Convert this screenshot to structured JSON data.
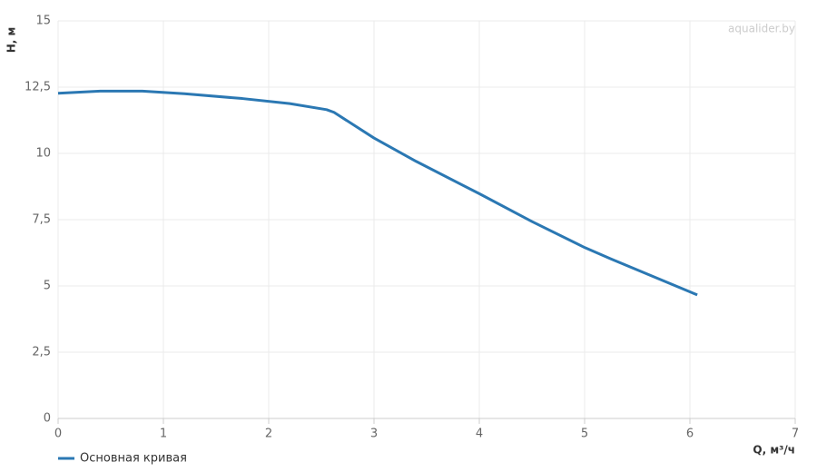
{
  "chart_data": {
    "type": "line",
    "watermark": "aqualider.by",
    "x_label": "Q, м³/ч",
    "y_label": "H, м",
    "series": [
      {
        "name": "Основная кривая",
        "color": "#2b78b3",
        "x": [
          0,
          0.4,
          0.8,
          1.2,
          1.75,
          2.2,
          2.55,
          2.62,
          3.0,
          3.4,
          4.0,
          4.5,
          5.0,
          5.25,
          6.07
        ],
        "values": [
          12.27,
          12.35,
          12.35,
          12.25,
          12.07,
          11.88,
          11.65,
          11.55,
          10.58,
          9.7,
          8.48,
          7.43,
          6.45,
          6.02,
          4.66
        ]
      }
    ],
    "xlim": [
      0,
      7
    ],
    "xticks": [
      0,
      1,
      2,
      3,
      4,
      5,
      6,
      7
    ],
    "ylim": [
      0,
      15
    ],
    "yticks": [
      0,
      {
        "value": 2.5,
        "label": "2,5"
      },
      5,
      {
        "value": 7.5,
        "label": "7,5"
      },
      10,
      {
        "value": 12.5,
        "label": "12,5"
      },
      15
    ],
    "grid": true,
    "legend": "bottom-left"
  }
}
